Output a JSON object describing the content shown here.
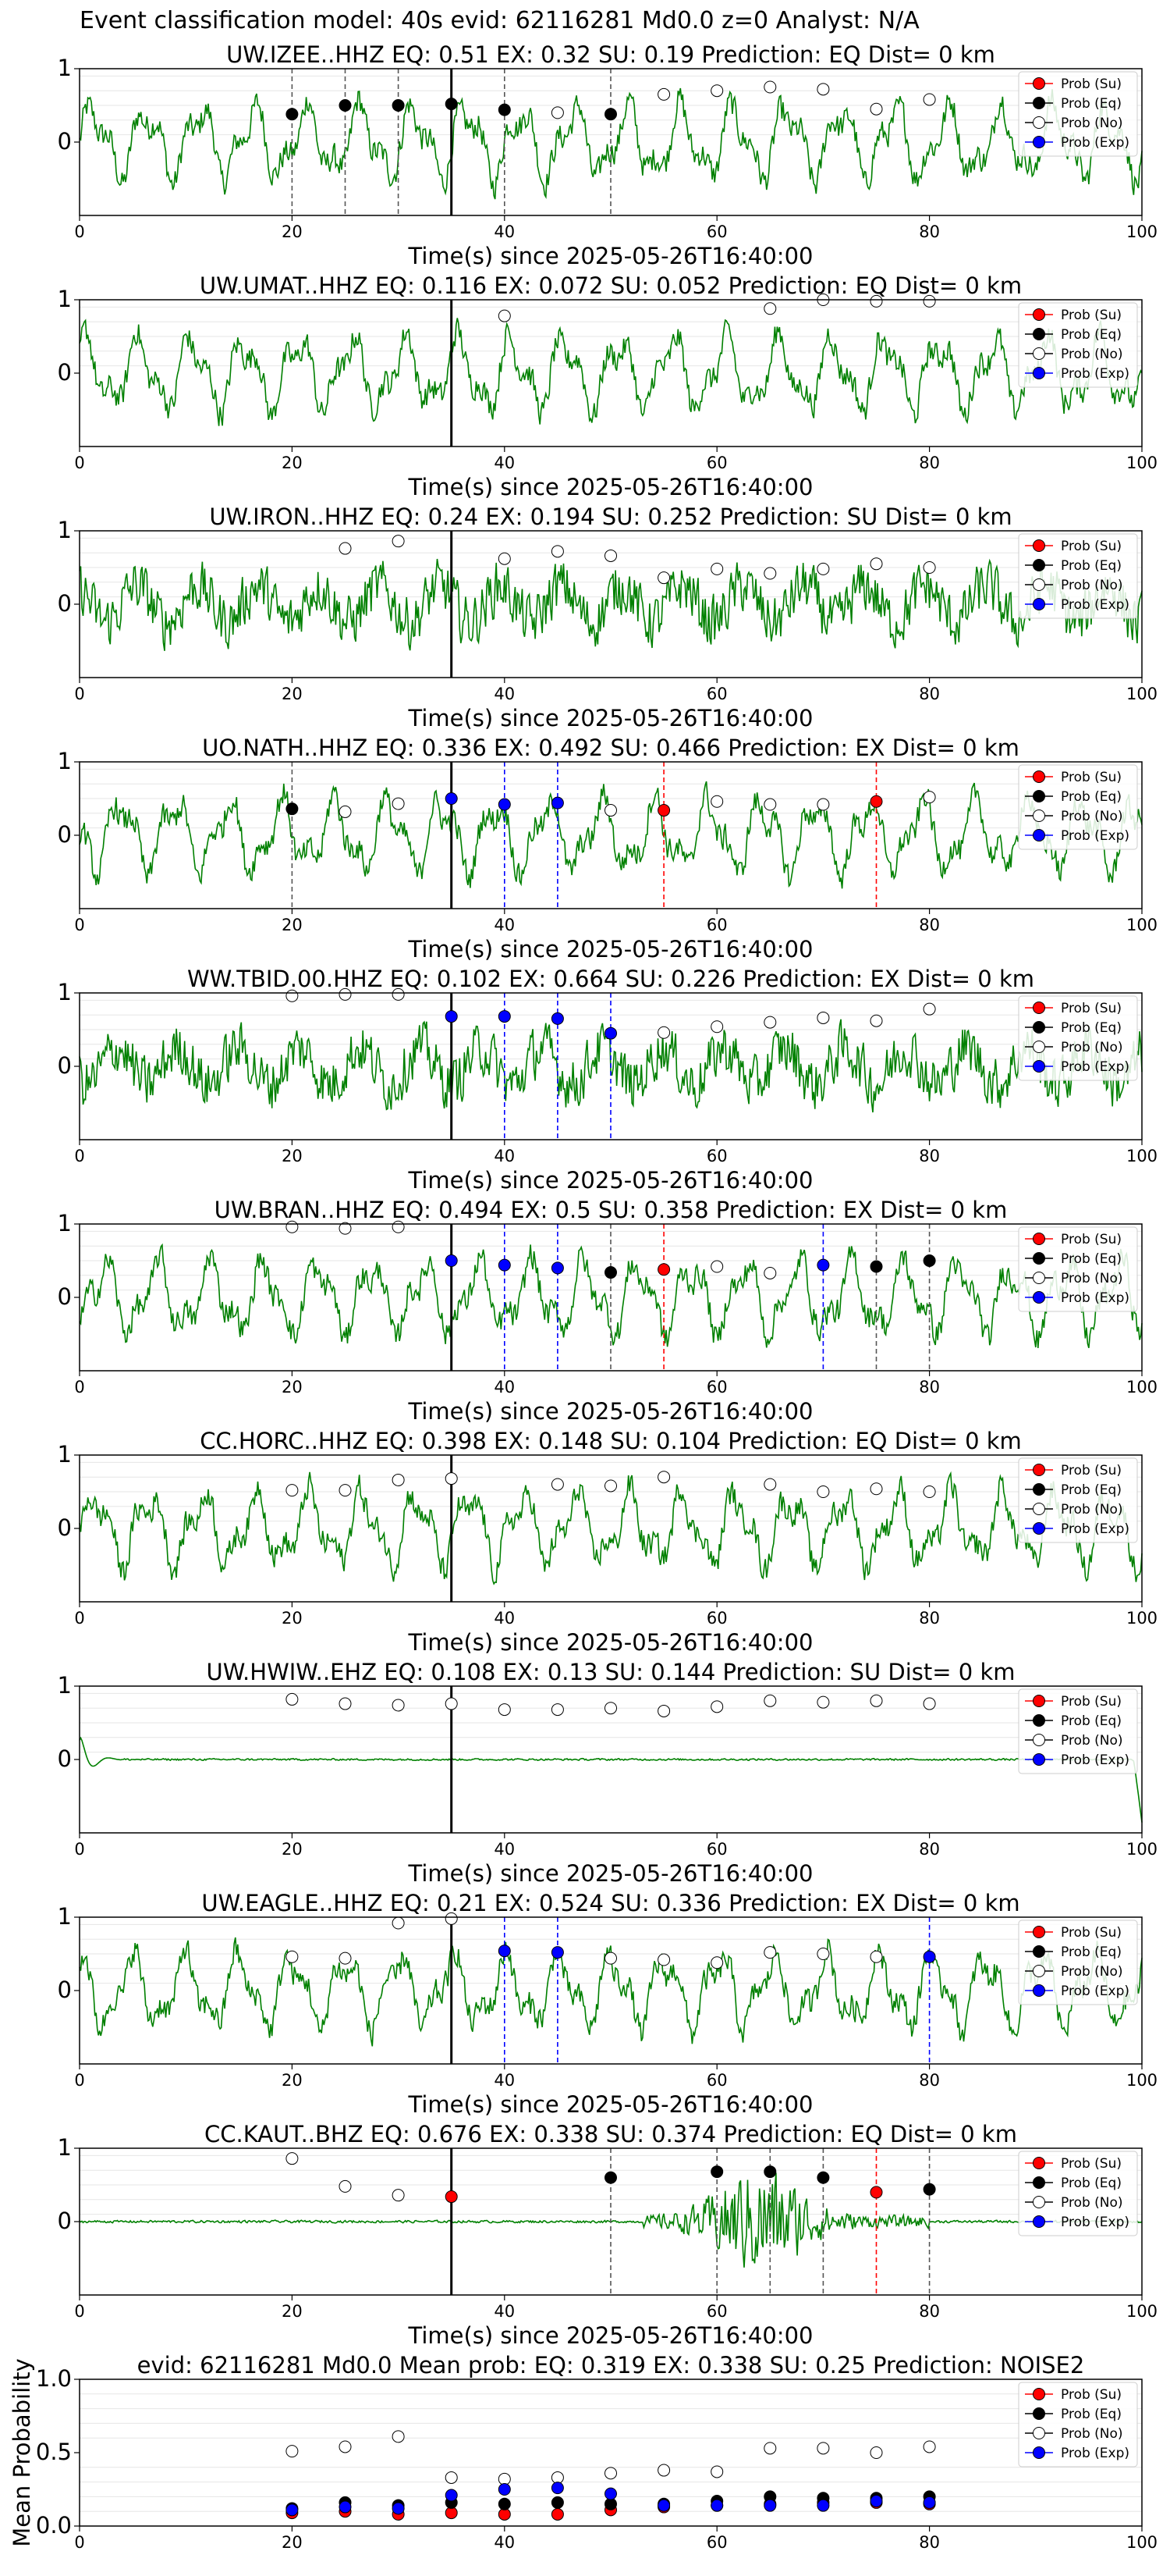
{
  "figure_title": "Event classification model: 40s evid: 62116281 Md0.0 z=0 Analyst: N/A",
  "colors": {
    "trace": "#008000",
    "su": "#ff0000",
    "eq": "#000000",
    "no": "#ffffff",
    "exp": "#0000ff",
    "origin_line": "#000000"
  },
  "legend": [
    "Prob (Su)",
    "Prob (Eq)",
    "Prob (No)",
    "Prob (Exp)"
  ],
  "chart_data": [
    {
      "type": "line",
      "title": "UW.IZEE..HHZ   EQ: 0.51   EX: 0.32   SU: 0.19   Prediction: EQ    Dist= 0 km",
      "xlabel": "Time(s) since 2025-05-26T16:40:00",
      "xlim": [
        0,
        100
      ],
      "ylim": [
        -1,
        1
      ],
      "xticks": [
        "0",
        "20",
        "40",
        "60",
        "80",
        "100"
      ],
      "yticks": [
        "1",
        "0"
      ],
      "origin_time": 35,
      "trace_style": "regular",
      "points": [
        {
          "t": 20,
          "p": 0.38,
          "c": "eq"
        },
        {
          "t": 25,
          "p": 0.5,
          "c": "eq"
        },
        {
          "t": 30,
          "p": 0.5,
          "c": "eq"
        },
        {
          "t": 35,
          "p": 0.52,
          "c": "eq"
        },
        {
          "t": 40,
          "p": 0.44,
          "c": "eq"
        },
        {
          "t": 45,
          "p": 0.4,
          "c": "no"
        },
        {
          "t": 50,
          "p": 0.38,
          "c": "eq"
        },
        {
          "t": 55,
          "p": 0.65,
          "c": "no"
        },
        {
          "t": 60,
          "p": 0.7,
          "c": "no"
        },
        {
          "t": 65,
          "p": 0.75,
          "c": "no"
        },
        {
          "t": 70,
          "p": 0.72,
          "c": "no"
        },
        {
          "t": 75,
          "p": 0.45,
          "c": "no"
        },
        {
          "t": 80,
          "p": 0.58,
          "c": "no"
        }
      ]
    },
    {
      "type": "line",
      "title": "UW.UMAT..HHZ   EQ: 0.116  EX: 0.072  SU: 0.052   Prediction: EQ    Dist= 0 km",
      "xlabel": "Time(s) since 2025-05-26T16:40:00",
      "xlim": [
        0,
        100
      ],
      "ylim": [
        -1,
        1
      ],
      "xticks": [
        "0",
        "20",
        "40",
        "60",
        "80",
        "100"
      ],
      "yticks": [
        "1",
        "0"
      ],
      "origin_time": 35,
      "trace_style": "regular",
      "points": [
        {
          "t": 40,
          "p": 0.78,
          "c": "no"
        },
        {
          "t": 65,
          "p": 0.88,
          "c": "no"
        },
        {
          "t": 70,
          "p": 1.0,
          "c": "no"
        },
        {
          "t": 75,
          "p": 0.98,
          "c": "no"
        },
        {
          "t": 80,
          "p": 0.98,
          "c": "no"
        }
      ]
    },
    {
      "type": "line",
      "title": "UW.IRON..HHZ   EQ: 0.24  EX: 0.194  SU: 0.252   Prediction: SU    Dist= 0 km",
      "xlabel": "Time(s) since 2025-05-26T16:40:00",
      "xlim": [
        0,
        100
      ],
      "ylim": [
        -1,
        1
      ],
      "xticks": [
        "0",
        "20",
        "40",
        "60",
        "80",
        "100"
      ],
      "yticks": [
        "1",
        "0"
      ],
      "origin_time": 35,
      "trace_style": "noisy",
      "points": [
        {
          "t": 25,
          "p": 0.76,
          "c": "no"
        },
        {
          "t": 30,
          "p": 0.86,
          "c": "no"
        },
        {
          "t": 40,
          "p": 0.62,
          "c": "no"
        },
        {
          "t": 45,
          "p": 0.72,
          "c": "no"
        },
        {
          "t": 50,
          "p": 0.66,
          "c": "no"
        },
        {
          "t": 55,
          "p": 0.36,
          "c": "no"
        },
        {
          "t": 60,
          "p": 0.48,
          "c": "no"
        },
        {
          "t": 65,
          "p": 0.42,
          "c": "no"
        },
        {
          "t": 70,
          "p": 0.48,
          "c": "no"
        },
        {
          "t": 75,
          "p": 0.55,
          "c": "no"
        },
        {
          "t": 80,
          "p": 0.5,
          "c": "no"
        }
      ]
    },
    {
      "type": "line",
      "title": "UO.NATH..HHZ   EQ: 0.336  EX: 0.492  SU: 0.466   Prediction: EX    Dist= 0 km",
      "xlabel": "Time(s) since 2025-05-26T16:40:00",
      "xlim": [
        0,
        100
      ],
      "ylim": [
        -1,
        1
      ],
      "xticks": [
        "0",
        "20",
        "40",
        "60",
        "80",
        "100"
      ],
      "yticks": [
        "1",
        "0"
      ],
      "origin_time": 35,
      "trace_style": "regular",
      "points": [
        {
          "t": 20,
          "p": 0.36,
          "c": "eq"
        },
        {
          "t": 25,
          "p": 0.32,
          "c": "no"
        },
        {
          "t": 30,
          "p": 0.43,
          "c": "no"
        },
        {
          "t": 35,
          "p": 0.5,
          "c": "exp"
        },
        {
          "t": 40,
          "p": 0.42,
          "c": "exp"
        },
        {
          "t": 45,
          "p": 0.44,
          "c": "exp"
        },
        {
          "t": 50,
          "p": 0.34,
          "c": "no"
        },
        {
          "t": 55,
          "p": 0.34,
          "c": "su"
        },
        {
          "t": 60,
          "p": 0.46,
          "c": "no"
        },
        {
          "t": 65,
          "p": 0.42,
          "c": "no"
        },
        {
          "t": 70,
          "p": 0.42,
          "c": "no"
        },
        {
          "t": 75,
          "p": 0.46,
          "c": "su"
        },
        {
          "t": 80,
          "p": 0.52,
          "c": "no"
        }
      ]
    },
    {
      "type": "line",
      "title": "WW.TBID.00.HHZ   EQ: 0.102  EX: 0.664  SU: 0.226   Prediction: EX    Dist= 0 km",
      "xlabel": "Time(s) since 2025-05-26T16:40:00",
      "xlim": [
        0,
        100
      ],
      "ylim": [
        -1,
        1
      ],
      "xticks": [
        "0",
        "20",
        "40",
        "60",
        "80",
        "100"
      ],
      "yticks": [
        "1",
        "0"
      ],
      "origin_time": 35,
      "trace_style": "noisy",
      "points": [
        {
          "t": 20,
          "p": 0.96,
          "c": "no"
        },
        {
          "t": 25,
          "p": 0.98,
          "c": "no"
        },
        {
          "t": 30,
          "p": 0.98,
          "c": "no"
        },
        {
          "t": 35,
          "p": 0.68,
          "c": "exp"
        },
        {
          "t": 40,
          "p": 0.68,
          "c": "exp"
        },
        {
          "t": 45,
          "p": 0.65,
          "c": "exp"
        },
        {
          "t": 50,
          "p": 0.45,
          "c": "exp"
        },
        {
          "t": 55,
          "p": 0.46,
          "c": "no"
        },
        {
          "t": 60,
          "p": 0.54,
          "c": "no"
        },
        {
          "t": 65,
          "p": 0.6,
          "c": "no"
        },
        {
          "t": 70,
          "p": 0.66,
          "c": "no"
        },
        {
          "t": 75,
          "p": 0.62,
          "c": "no"
        },
        {
          "t": 80,
          "p": 0.78,
          "c": "no"
        }
      ]
    },
    {
      "type": "line",
      "title": "UW.BRAN..HHZ   EQ: 0.494  EX: 0.5  SU: 0.358   Prediction: EX    Dist= 0 km",
      "xlabel": "Time(s) since 2025-05-26T16:40:00",
      "xlim": [
        0,
        100
      ],
      "ylim": [
        -1,
        1
      ],
      "xticks": [
        "0",
        "20",
        "40",
        "60",
        "80",
        "100"
      ],
      "yticks": [
        "1",
        "0"
      ],
      "origin_time": 35,
      "trace_style": "regular",
      "points": [
        {
          "t": 20,
          "p": 0.96,
          "c": "no"
        },
        {
          "t": 25,
          "p": 0.94,
          "c": "no"
        },
        {
          "t": 30,
          "p": 0.96,
          "c": "no"
        },
        {
          "t": 35,
          "p": 0.5,
          "c": "exp"
        },
        {
          "t": 40,
          "p": 0.44,
          "c": "exp"
        },
        {
          "t": 45,
          "p": 0.4,
          "c": "exp"
        },
        {
          "t": 50,
          "p": 0.34,
          "c": "eq"
        },
        {
          "t": 55,
          "p": 0.38,
          "c": "su"
        },
        {
          "t": 60,
          "p": 0.42,
          "c": "no"
        },
        {
          "t": 65,
          "p": 0.33,
          "c": "no"
        },
        {
          "t": 70,
          "p": 0.44,
          "c": "exp"
        },
        {
          "t": 75,
          "p": 0.42,
          "c": "eq"
        },
        {
          "t": 80,
          "p": 0.5,
          "c": "eq"
        }
      ]
    },
    {
      "type": "line",
      "title": "CC.HORC..HHZ   EQ: 0.398  EX: 0.148  SU: 0.104   Prediction: EQ    Dist= 0 km",
      "xlabel": "Time(s) since 2025-05-26T16:40:00",
      "xlim": [
        0,
        100
      ],
      "ylim": [
        -1,
        1
      ],
      "xticks": [
        "0",
        "20",
        "40",
        "60",
        "80",
        "100"
      ],
      "yticks": [
        "1",
        "0"
      ],
      "origin_time": 35,
      "trace_style": "regular",
      "points": [
        {
          "t": 20,
          "p": 0.52,
          "c": "no"
        },
        {
          "t": 25,
          "p": 0.52,
          "c": "no"
        },
        {
          "t": 30,
          "p": 0.66,
          "c": "no"
        },
        {
          "t": 35,
          "p": 0.68,
          "c": "no"
        },
        {
          "t": 45,
          "p": 0.6,
          "c": "no"
        },
        {
          "t": 50,
          "p": 0.58,
          "c": "no"
        },
        {
          "t": 55,
          "p": 0.7,
          "c": "no"
        },
        {
          "t": 65,
          "p": 0.6,
          "c": "no"
        },
        {
          "t": 70,
          "p": 0.5,
          "c": "no"
        },
        {
          "t": 75,
          "p": 0.54,
          "c": "no"
        },
        {
          "t": 80,
          "p": 0.5,
          "c": "no"
        }
      ]
    },
    {
      "type": "line",
      "title": "UW.HWIW..EHZ   EQ: 0.108  EX: 0.13  SU: 0.144   Prediction: SU    Dist= 0 km",
      "xlabel": "Time(s) since 2025-05-26T16:40:00",
      "xlim": [
        0,
        100
      ],
      "ylim": [
        -1,
        1
      ],
      "xticks": [
        "0",
        "20",
        "40",
        "60",
        "80",
        "100"
      ],
      "yticks": [
        "1",
        "0"
      ],
      "origin_time": 35,
      "trace_style": "flat",
      "points": [
        {
          "t": 20,
          "p": 0.82,
          "c": "no"
        },
        {
          "t": 25,
          "p": 0.76,
          "c": "no"
        },
        {
          "t": 30,
          "p": 0.74,
          "c": "no"
        },
        {
          "t": 35,
          "p": 0.76,
          "c": "no"
        },
        {
          "t": 40,
          "p": 0.68,
          "c": "no"
        },
        {
          "t": 45,
          "p": 0.68,
          "c": "no"
        },
        {
          "t": 50,
          "p": 0.7,
          "c": "no"
        },
        {
          "t": 55,
          "p": 0.66,
          "c": "no"
        },
        {
          "t": 60,
          "p": 0.72,
          "c": "no"
        },
        {
          "t": 65,
          "p": 0.8,
          "c": "no"
        },
        {
          "t": 70,
          "p": 0.78,
          "c": "no"
        },
        {
          "t": 75,
          "p": 0.8,
          "c": "no"
        },
        {
          "t": 80,
          "p": 0.76,
          "c": "no"
        }
      ]
    },
    {
      "type": "line",
      "title": "UW.EAGLE..HHZ   EQ: 0.21  EX: 0.524  SU: 0.336   Prediction: EX    Dist= 0 km",
      "xlabel": "Time(s) since 2025-05-26T16:40:00",
      "xlim": [
        0,
        100
      ],
      "ylim": [
        -1,
        1
      ],
      "xticks": [
        "0",
        "20",
        "40",
        "60",
        "80",
        "100"
      ],
      "yticks": [
        "1",
        "0"
      ],
      "origin_time": 35,
      "trace_style": "regular",
      "points": [
        {
          "t": 20,
          "p": 0.46,
          "c": "no"
        },
        {
          "t": 25,
          "p": 0.44,
          "c": "no"
        },
        {
          "t": 30,
          "p": 0.92,
          "c": "no"
        },
        {
          "t": 35,
          "p": 0.98,
          "c": "no"
        },
        {
          "t": 40,
          "p": 0.54,
          "c": "exp"
        },
        {
          "t": 45,
          "p": 0.52,
          "c": "exp"
        },
        {
          "t": 50,
          "p": 0.44,
          "c": "no"
        },
        {
          "t": 55,
          "p": 0.42,
          "c": "no"
        },
        {
          "t": 60,
          "p": 0.38,
          "c": "no"
        },
        {
          "t": 65,
          "p": 0.52,
          "c": "no"
        },
        {
          "t": 70,
          "p": 0.5,
          "c": "no"
        },
        {
          "t": 75,
          "p": 0.46,
          "c": "no"
        },
        {
          "t": 80,
          "p": 0.46,
          "c": "exp"
        }
      ]
    },
    {
      "type": "line",
      "title": "CC.KAUT..BHZ   EQ: 0.676  EX: 0.338  SU: 0.374   Prediction: EQ    Dist= 0 km",
      "xlabel": "Time(s) since 2025-05-26T16:40:00",
      "xlim": [
        0,
        100
      ],
      "ylim": [
        -1,
        1
      ],
      "xticks": [
        "0",
        "20",
        "40",
        "60",
        "80",
        "100"
      ],
      "yticks": [
        "1",
        "0"
      ],
      "origin_time": 35,
      "trace_style": "burst",
      "points": [
        {
          "t": 20,
          "p": 0.86,
          "c": "no"
        },
        {
          "t": 25,
          "p": 0.48,
          "c": "no"
        },
        {
          "t": 30,
          "p": 0.36,
          "c": "no"
        },
        {
          "t": 35,
          "p": 0.34,
          "c": "su"
        },
        {
          "t": 50,
          "p": 0.6,
          "c": "eq"
        },
        {
          "t": 60,
          "p": 0.68,
          "c": "eq"
        },
        {
          "t": 65,
          "p": 0.68,
          "c": "eq"
        },
        {
          "t": 70,
          "p": 0.6,
          "c": "eq"
        },
        {
          "t": 75,
          "p": 0.4,
          "c": "su"
        },
        {
          "t": 80,
          "p": 0.44,
          "c": "eq"
        }
      ]
    },
    {
      "type": "scatter",
      "title": "evid: 62116281  Md0.0   Mean prob:   EQ: 0.319  EX: 0.338  SU: 0.25   Prediction: NOISE2",
      "ylabel": "Mean Probability",
      "xlim": [
        0,
        100
      ],
      "ylim": [
        0,
        1
      ],
      "xticks": [
        "0",
        "20",
        "40",
        "60",
        "80",
        "100"
      ],
      "yticks": [
        "0.0",
        "0.5",
        "1.0"
      ],
      "x": [
        20,
        25,
        30,
        35,
        40,
        45,
        50,
        55,
        60,
        65,
        70,
        75,
        80
      ],
      "series": [
        {
          "name": "Prob (Su)",
          "c": "su",
          "values": [
            0.09,
            0.1,
            0.08,
            0.09,
            0.08,
            0.08,
            0.11,
            0.13,
            0.14,
            0.15,
            0.16,
            0.16,
            0.15
          ]
        },
        {
          "name": "Prob (Eq)",
          "c": "eq",
          "values": [
            0.12,
            0.16,
            0.14,
            0.16,
            0.15,
            0.16,
            0.15,
            0.15,
            0.17,
            0.2,
            0.19,
            0.19,
            0.2
          ]
        },
        {
          "name": "Prob (No)",
          "c": "no",
          "values": [
            0.51,
            0.54,
            0.61,
            0.33,
            0.32,
            0.33,
            0.36,
            0.38,
            0.37,
            0.53,
            0.53,
            0.5,
            0.54
          ]
        },
        {
          "name": "Prob (Exp)",
          "c": "exp",
          "values": [
            0.11,
            0.13,
            0.12,
            0.21,
            0.25,
            0.26,
            0.22,
            0.14,
            0.14,
            0.14,
            0.14,
            0.17,
            0.16
          ]
        }
      ]
    }
  ]
}
